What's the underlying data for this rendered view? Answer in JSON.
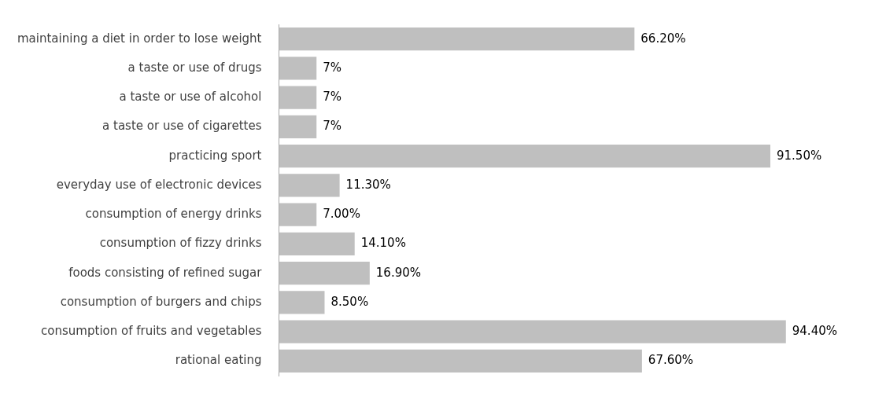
{
  "chart_data": {
    "type": "bar",
    "orientation": "horizontal",
    "categories": [
      "maintaining a diet in order to lose weight",
      "a taste or use of drugs",
      "a taste or use of alcohol",
      "a taste or use of cigarettes",
      "practicing sport",
      "everyday use of electronic devices",
      "consumption of energy drinks",
      "consumption of fizzy drinks",
      "foods consisting of refined sugar",
      "consumption of burgers and chips",
      "consumption of fruits and vegetables",
      "rational eating"
    ],
    "values": [
      66.2,
      7,
      7,
      7,
      91.5,
      11.3,
      7,
      14.1,
      16.9,
      8.5,
      94.4,
      67.6
    ],
    "value_labels": [
      "66.20%",
      "7%",
      "7%",
      "7%",
      "91.50%",
      "11.30%",
      "7.00%",
      "14.10%",
      "16.90%",
      "8.50%",
      "94.40%",
      "67.60%"
    ],
    "color": "#bfbfbf"
  }
}
